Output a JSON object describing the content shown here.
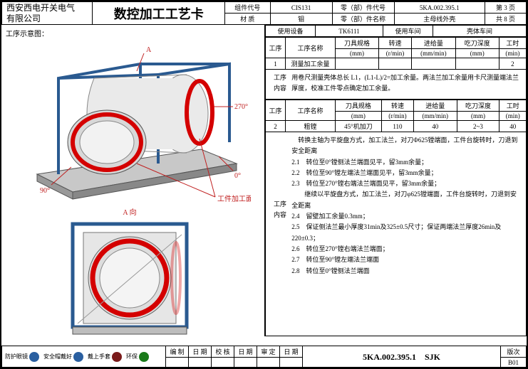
{
  "header": {
    "company_line1": "西安西电开关电气",
    "company_line2": "有限公司",
    "title": "数控加工工艺卡",
    "component_code_lbl": "组件代号",
    "component_code": "CIS131",
    "part_code_lbl": "零（部）件代号",
    "part_code": "5KA.002.395.1",
    "page_lbl": "第 3 页",
    "material_lbl": "材 质",
    "material": "钼",
    "part_name_lbl": "零（部）件名称",
    "part_name": "主母线外壳",
    "total_pages_lbl": "共 8 页"
  },
  "left_title": "工序示意图：",
  "left_labels": {
    "A": "A",
    "angle270": "270°",
    "angle0": "0°",
    "angle90": "90°",
    "face": "工件加工面",
    "Aview": "A 向"
  },
  "colors": {
    "ring": "#d40000",
    "body": "#e8e8e8",
    "frame": "#3a6fa8",
    "base": "#a8a8a8",
    "leader": "#c02020",
    "text": "#c02020"
  },
  "right": {
    "equip_lbl": "使用设备",
    "equip": "TK6111",
    "shop_lbl": "使用车间",
    "shop": "壳体车间",
    "cols": {
      "step": "工序",
      "name": "工序名称",
      "tool": "刀具规格",
      "tool_u": "(mm)",
      "speed": "转速",
      "speed_u": "(r/min)",
      "feed": "进给量",
      "feed_u": "(mm/min)",
      "depth": "吃刀深度",
      "depth_u": "(mm)",
      "time": "工时",
      "time_u": "(min)"
    },
    "row1": {
      "step": "1",
      "name": "测量加工余量",
      "tool": "",
      "speed": "",
      "feed": "",
      "depth": "",
      "time": "2"
    },
    "content1_lbl": "工序\n内容",
    "content1": "用卷尺测量壳体总长 L1，(L1-L)/2=加工余量。两法兰加工余量用卡尺测量端法兰厚度，校准工件零点确定加工余量。",
    "row2": {
      "step": "2",
      "name": "粗镗",
      "tool": "45°机加刀",
      "speed": "110",
      "feed": "40",
      "depth": "2~3",
      "time": "40"
    },
    "content2_lbl": "工序\n内容",
    "content2_intro": "转换主轴为平旋盘方式，加工法兰，对刀Φ625镗端面，工件台旋转时，刀退到安全距离",
    "content2_items": [
      "2.1　转位至0°镗侧法兰端面见平，留3mm余量；",
      "2.2　转位至90°镗左端法兰端面见平，留3mm余量；",
      "2.3　转位至270°镗右端法兰端面见平，留3mm余量；",
      "　　继续以平旋盘方式，加工法兰，对刀φ625镗端面，工件台旋转时，刀退到安全距离",
      "2.4　留壁加工余量0.3mm；",
      "2.5　保证侧法兰最小厚度31min及325±0.5尺寸；保证两端法兰厚度26min及220±0.3；",
      "2.6　转位至270°镗右端法兰端面；",
      "2.7　转位至90°镗左端法兰端面",
      "2.8　转位至0°镗侧法兰端面"
    ]
  },
  "footer": {
    "items": [
      {
        "label": "防护眼镜",
        "icon_color": "#2a5fa0"
      },
      {
        "label": "安全帽戴好",
        "icon_color": "#2a5fa0"
      },
      {
        "label": "戴上手套",
        "icon_color": "#7a1a1a"
      },
      {
        "label": "环保",
        "icon_color": "#1a7a1a"
      }
    ],
    "cols": {
      "compile": "编 制",
      "date": "日 期",
      "check": "校 核",
      "date2": "日 期",
      "audit": "审 定",
      "date3": "日 期"
    },
    "drawing_no": "5KA.002.395.1　SJK",
    "rev_lbl": "版次",
    "rev": "B01"
  }
}
